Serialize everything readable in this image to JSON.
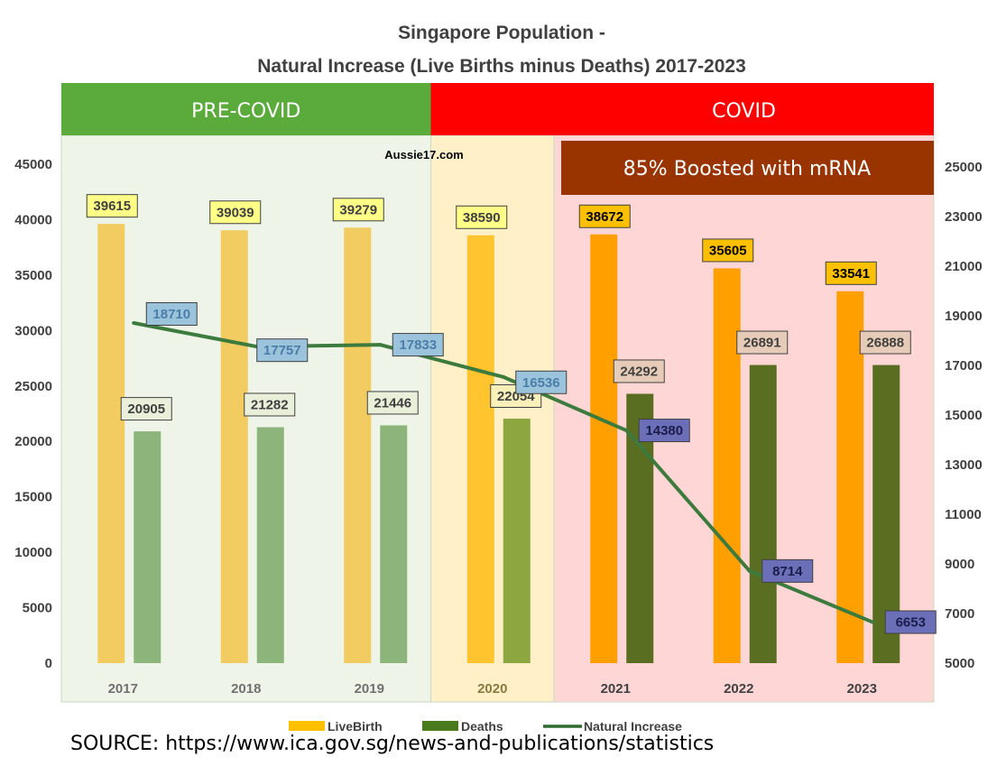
{
  "chart_data": {
    "type": "bar",
    "title": "Singapore Population -",
    "subtitle": "Natural Increase (Live Births minus Deaths) 2017-2023",
    "categories": [
      "2017",
      "2018",
      "2019",
      "2020",
      "2021",
      "2022",
      "2023"
    ],
    "series": [
      {
        "name": "LiveBirth",
        "type": "bar",
        "axis": "left",
        "values": [
          39615,
          39039,
          39279,
          38590,
          38672,
          35605,
          33541
        ]
      },
      {
        "name": "Deaths",
        "type": "bar",
        "axis": "left",
        "values": [
          20905,
          21282,
          21446,
          22054,
          24292,
          26891,
          26888
        ]
      },
      {
        "name": "Natural Increase",
        "type": "line",
        "axis": "right",
        "values": [
          18710,
          17757,
          17833,
          16536,
          14380,
          8714,
          6653
        ]
      }
    ],
    "left_axis": {
      "min": 0,
      "max": 45000,
      "step": 5000,
      "ticks": [
        "0",
        "5000",
        "10000",
        "15000",
        "20000",
        "25000",
        "30000",
        "35000",
        "40000",
        "45000"
      ]
    },
    "right_axis": {
      "min": 5000,
      "max": 25000,
      "step": 2000,
      "ticks": [
        "5000",
        "7000",
        "9000",
        "11000",
        "13000",
        "15000",
        "17000",
        "19000",
        "21000",
        "23000",
        "25000"
      ]
    },
    "periods": [
      {
        "label": "PRE-COVID",
        "categories": [
          "2017",
          "2018",
          "2019"
        ],
        "band_color": "#5aaa3c",
        "bg_color": "#eef5e8"
      },
      {
        "label": "",
        "categories": [
          "2020"
        ],
        "band_color": "#ff0000",
        "bg_color": "#fff0c8"
      },
      {
        "label": "COVID",
        "categories": [
          "2021",
          "2022",
          "2023"
        ],
        "band_color": "#ff0000",
        "bg_color": "#ffd6d6"
      }
    ],
    "annotation": "85% Boosted with mRNA",
    "watermark": "Aussie17.com",
    "legend": [
      "LiveBirth",
      "Deaths",
      "Natural Increase"
    ],
    "colors": {
      "livebirth": [
        "#f2cc60",
        "#f2cc60",
        "#f2cc60",
        "#ffc42e",
        "#ffa000",
        "#ffa000",
        "#ffa000"
      ],
      "deaths": [
        "#8db47a",
        "#8db47a",
        "#8db47a",
        "#8ca640",
        "#5a6e22",
        "#5a6e22",
        "#5a6e22"
      ],
      "line": "#3d7a3d",
      "livebirth_label_bg": [
        "#ffff88",
        "#ffff88",
        "#ffff88",
        "#ffff88",
        "#ffc000",
        "#ffc000",
        "#ffc000"
      ],
      "deaths_label_bg": [
        "#e8f0da",
        "#e8f0da",
        "#e8f0da",
        "#f8f0b8",
        "#e6ccb8",
        "#e6ccb8",
        "#e6ccb8"
      ],
      "increase_label_bg": [
        "#9cc3dc",
        "#9cc3dc",
        "#9cc3dc",
        "#9cc3dc",
        "#6a6fb8",
        "#6a6fb8",
        "#6a6fb8"
      ],
      "annotation_bg": "#993300",
      "legend_livebirth": "#ffc000",
      "legend_deaths": "#4a7a1e",
      "legend_line": "#2f6b2f"
    }
  },
  "source": "SOURCE: https://www.ica.gov.sg/news-and-publications/statistics"
}
